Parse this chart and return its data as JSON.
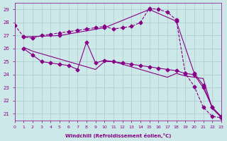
{
  "bg_color": "#cce8e8",
  "grid_color": "#aacccc",
  "line_color": "#880088",
  "xlabel": "Windchill (Refroidissement éolien,°C)",
  "xlim": [
    0,
    23
  ],
  "ylim": [
    21,
    29
  ],
  "yticks": [
    21,
    22,
    23,
    24,
    25,
    26,
    27,
    28,
    29
  ],
  "xticks": [
    0,
    1,
    2,
    3,
    4,
    5,
    6,
    7,
    8,
    9,
    10,
    11,
    12,
    13,
    14,
    15,
    16,
    17,
    18,
    19,
    20,
    21,
    22,
    23
  ],
  "line1_x": [
    0,
    1,
    2,
    3,
    4,
    5,
    6,
    7,
    8,
    9,
    10,
    11,
    12,
    13,
    14,
    15,
    16,
    17,
    18,
    19,
    20,
    21,
    22,
    23
  ],
  "line1_y": [
    27.8,
    26.9,
    26.8,
    27.0,
    27.1,
    27.2,
    27.3,
    27.4,
    27.5,
    27.6,
    27.7,
    27.5,
    27.6,
    27.7,
    28.0,
    29.1,
    29.0,
    28.8,
    28.2,
    24.1,
    23.1,
    21.5,
    20.8,
    20.7
  ],
  "line2_x": [
    1,
    2,
    3,
    4,
    5,
    6,
    7,
    8,
    9,
    10,
    11,
    12,
    13,
    14,
    15,
    16,
    17,
    18,
    19,
    20,
    21,
    22,
    23
  ],
  "line2_y": [
    26.0,
    25.5,
    25.0,
    24.9,
    24.8,
    24.7,
    24.4,
    26.5,
    24.9,
    25.1,
    25.0,
    24.9,
    24.8,
    24.7,
    24.6,
    24.5,
    24.4,
    24.3,
    24.1,
    24.0,
    23.0,
    21.5,
    20.8
  ],
  "line3_x": [
    1,
    2,
    3,
    4,
    5,
    6,
    7,
    8,
    9,
    10,
    11,
    12,
    13,
    14,
    15,
    16,
    17,
    18,
    19,
    20,
    21,
    22,
    23
  ],
  "line3_y": [
    26.1,
    25.8,
    25.6,
    25.4,
    25.2,
    25.0,
    24.8,
    24.6,
    24.4,
    25.0,
    25.0,
    24.8,
    24.6,
    24.4,
    24.2,
    24.0,
    23.8,
    24.1,
    23.9,
    23.8,
    23.7,
    21.4,
    20.75
  ],
  "line4_x": [
    1,
    5,
    10,
    15,
    18,
    20,
    21,
    22,
    23
  ],
  "line4_y": [
    26.9,
    27.0,
    27.6,
    29.0,
    28.1,
    24.1,
    23.2,
    21.5,
    20.7
  ]
}
